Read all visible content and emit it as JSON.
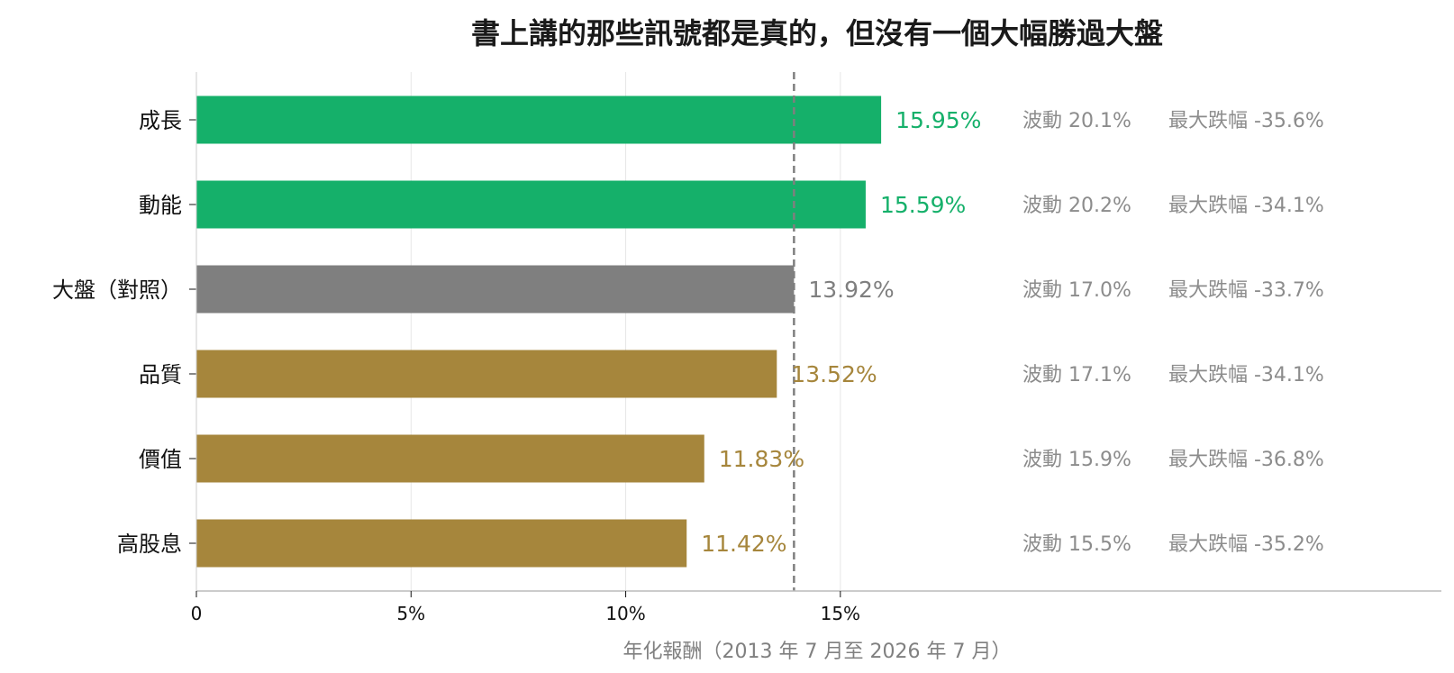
{
  "chart_data": {
    "type": "bar",
    "orientation": "horizontal",
    "title": "書上講的那些訊號都是真的，但沒有一個大幅勝過大盤",
    "xlabel": "年化報酬（2013 年 7 月至 2026 年 7 月）",
    "ylabel": "",
    "xlim": [
      0,
      29
    ],
    "x_ticks": [
      {
        "value": 0,
        "label": "0"
      },
      {
        "value": 5,
        "label": "5%"
      },
      {
        "value": 10,
        "label": "10%"
      },
      {
        "value": 15,
        "label": "15%"
      }
    ],
    "grid": "vertical",
    "categories": [
      "成長",
      "動能",
      "大盤（對照）",
      "品質",
      "價值",
      "高股息"
    ],
    "values": [
      15.95,
      15.59,
      13.92,
      13.52,
      11.83,
      11.42
    ],
    "value_labels": [
      "15.95%",
      "15.59%",
      "13.92%",
      "13.52%",
      "11.83%",
      "11.42%"
    ],
    "colors": [
      "#15b06a",
      "#15b06a",
      "#7f7f7f",
      "#a6863c",
      "#a6863c",
      "#a6863c"
    ],
    "volatility_labels": [
      "波動 20.1%",
      "波動 20.2%",
      "波動 17.0%",
      "波動 17.1%",
      "波動 15.9%",
      "波動 15.5%"
    ],
    "max_drawdown_labels": [
      "最大跌幅 -35.6%",
      "最大跌幅 -34.1%",
      "最大跌幅 -33.7%",
      "最大跌幅 -34.1%",
      "最大跌幅 -36.8%",
      "最大跌幅 -35.2%"
    ],
    "reference_line": {
      "value": 13.92,
      "style": "dashed",
      "color": "#7f7f7f"
    }
  }
}
